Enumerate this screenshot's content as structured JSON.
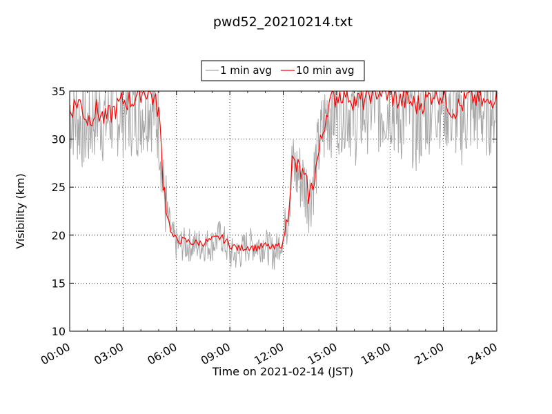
{
  "chart_data": {
    "type": "line",
    "title": "pwd52_20210214.txt",
    "xlabel": "Time on 2021-02-14 (JST)",
    "ylabel": "Visibility (km)",
    "xlim": [
      "00:00",
      "24:00"
    ],
    "ylim": [
      10,
      35
    ],
    "grid": true,
    "legend_position": "top-center",
    "x_tick_labels": [
      "00:00",
      "03:00",
      "06:00",
      "09:00",
      "12:00",
      "15:00",
      "18:00",
      "21:00",
      "24:00"
    ],
    "y_tick_labels": [
      "10",
      "15",
      "20",
      "25",
      "30",
      "35"
    ],
    "series": [
      {
        "name": "1 min avg",
        "color": "#a8a8a8",
        "x": [
          "00:00",
          "00:30",
          "01:00",
          "01:30",
          "02:00",
          "02:30",
          "03:00",
          "03:30",
          "04:00",
          "04:30",
          "05:00",
          "05:15",
          "05:30",
          "05:45",
          "06:00",
          "06:30",
          "07:00",
          "07:30",
          "08:00",
          "08:30",
          "09:00",
          "09:30",
          "10:00",
          "10:30",
          "11:00",
          "11:30",
          "12:00",
          "12:15",
          "12:30",
          "13:00",
          "13:30",
          "14:00",
          "14:30",
          "15:00",
          "15:30",
          "16:00",
          "16:30",
          "17:00",
          "17:30",
          "18:00",
          "18:30",
          "19:00",
          "19:30",
          "20:00",
          "20:30",
          "21:00",
          "21:30",
          "22:00",
          "22:30",
          "23:00",
          "23:30",
          "24:00"
        ],
        "y": [
          33,
          32,
          31,
          33,
          32,
          33,
          33,
          33,
          33,
          34,
          32,
          25,
          22,
          20,
          19,
          19,
          19,
          19,
          19,
          20,
          18,
          18,
          19,
          19,
          19,
          18,
          20,
          23,
          27,
          26,
          24,
          29,
          33,
          33,
          34,
          32,
          33,
          34,
          33,
          34,
          32,
          33,
          31,
          33,
          34,
          34,
          33,
          32,
          33,
          33,
          33,
          34
        ]
      },
      {
        "name": "10 min avg",
        "color": "#ff0000",
        "x": [
          "00:00",
          "00:30",
          "01:00",
          "01:30",
          "02:00",
          "02:30",
          "03:00",
          "03:30",
          "04:00",
          "04:30",
          "05:00",
          "05:15",
          "05:30",
          "05:45",
          "06:00",
          "06:30",
          "07:00",
          "07:30",
          "08:00",
          "08:30",
          "09:00",
          "09:30",
          "10:00",
          "10:30",
          "11:00",
          "11:30",
          "12:00",
          "12:15",
          "12:30",
          "13:00",
          "13:30",
          "14:00",
          "14:30",
          "15:00",
          "15:30",
          "16:00",
          "16:30",
          "17:00",
          "17:30",
          "18:00",
          "18:30",
          "19:00",
          "19:30",
          "20:00",
          "20:30",
          "21:00",
          "21:30",
          "22:00",
          "22:30",
          "23:00",
          "23:30",
          "24:00"
        ],
        "y": [
          33,
          34,
          32,
          33,
          32,
          33,
          34,
          34,
          35,
          35,
          33,
          26,
          22,
          20,
          19.5,
          19.4,
          19.2,
          19.2,
          19.5,
          19.8,
          19.0,
          18.6,
          18.8,
          18.7,
          18.9,
          18.6,
          19.2,
          22.5,
          27.5,
          26.5,
          24.0,
          28.5,
          33.5,
          34.5,
          35,
          34,
          34,
          35,
          35,
          34.5,
          34,
          34,
          33.5,
          34,
          35,
          34.5,
          33,
          33.5,
          34.5,
          34,
          33.5,
          35
        ]
      }
    ]
  }
}
